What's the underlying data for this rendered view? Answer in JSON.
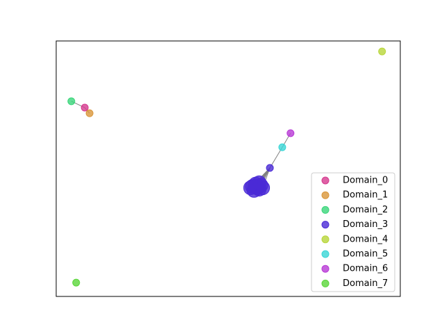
{
  "chart_data": {
    "type": "scatter",
    "xlim": [
      0,
      1
    ],
    "ylim": [
      0,
      1
    ],
    "legend": "lower right",
    "series": [
      {
        "name": "Domain_0",
        "color": "#d63a8f",
        "x": [
          0.083
        ],
        "values": [
          0.739
        ]
      },
      {
        "name": "Domain_1",
        "color": "#d9963a",
        "x": [
          0.097
        ],
        "values": [
          0.717
        ]
      },
      {
        "name": "Domain_2",
        "color": "#3ad67a",
        "x": [
          0.044
        ],
        "values": [
          0.764
        ]
      },
      {
        "name": "Domain_3",
        "color": "#4a2ad6",
        "x": [
          0.621,
          0.57,
          0.58,
          0.59,
          0.575,
          0.595,
          0.585,
          0.565,
          0.59,
          0.578,
          0.6
        ],
        "values": [
          0.503,
          0.43,
          0.44,
          0.42,
          0.415,
          0.435,
          0.425,
          0.425,
          0.445,
          0.432,
          0.425
        ]
      },
      {
        "name": "Domain_4",
        "color": "#b8d63a",
        "x": [
          0.947
        ],
        "values": [
          0.959
        ]
      },
      {
        "name": "Domain_5",
        "color": "#3ad6d6",
        "x": [
          0.657
        ],
        "values": [
          0.584
        ]
      },
      {
        "name": "Domain_6",
        "color": "#b83ad6",
        "x": [
          0.681
        ],
        "values": [
          0.639
        ]
      },
      {
        "name": "Domain_7",
        "color": "#5ad63a",
        "x": [
          0.058
        ],
        "values": [
          0.054
        ]
      }
    ]
  }
}
